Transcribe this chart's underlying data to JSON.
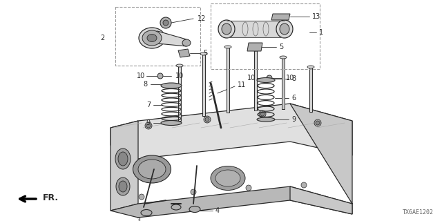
{
  "background_color": "#ffffff",
  "diagram_code": "TX6AE1202",
  "fr_label": "FR.",
  "fig_width": 6.4,
  "fig_height": 3.2,
  "dpi": 100,
  "font_size": 7.0,
  "line_color": "#2a2a2a",
  "gray_fill": "#d8d8d8",
  "gray_mid": "#b0b0b0",
  "gray_dark": "#888888"
}
